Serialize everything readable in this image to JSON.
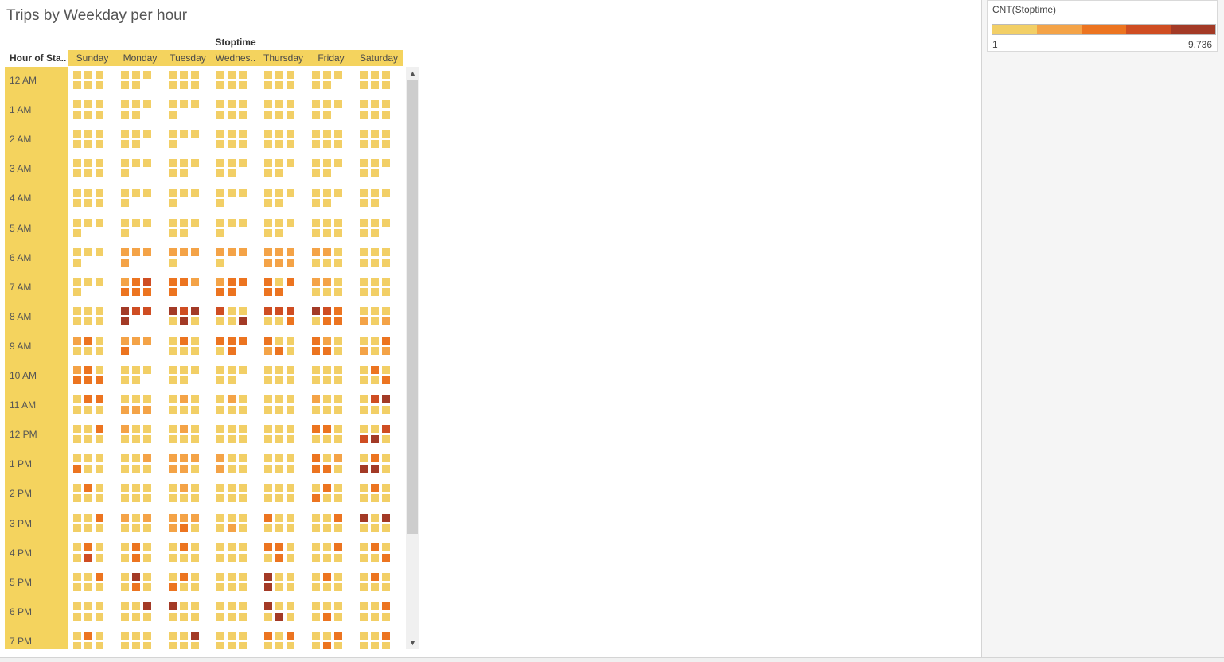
{
  "title": "Trips by Weekday per hour",
  "chart_data": {
    "type": "heatmap",
    "column_group_label": "Stoptime",
    "row_header": "Hour of Sta..",
    "columns": [
      "Sunday",
      "Monday",
      "Tuesday",
      "Wednes..",
      "Thursday",
      "Friday",
      "Saturday"
    ],
    "rows": [
      "12 AM",
      "1 AM",
      "2 AM",
      "3 AM",
      "4 AM",
      "5 AM",
      "6 AM",
      "7 AM",
      "8 AM",
      "9 AM",
      "10 AM",
      "11 AM",
      "12 PM",
      "1 PM",
      "2 PM",
      "3 PM",
      "4 PM",
      "5 PM",
      "6 PM",
      "7 PM"
    ],
    "color_levels": [
      "#f2cf66",
      "#f4a347",
      "#ec7420",
      "#cf4d22",
      "#a33a26"
    ],
    "cells": [
      [
        "000000E",
        "00000",
        "000000",
        "000000E",
        "000000",
        "00000",
        "000000E"
      ],
      [
        "000000",
        "00000",
        "0000",
        "000000",
        "000000",
        "00000",
        "000000"
      ],
      [
        "000000",
        "00000",
        "0000",
        "000000",
        "000000",
        "000000",
        "000000"
      ],
      [
        "000000",
        "0000",
        "00000",
        "00000",
        "00000",
        "00000",
        "00000"
      ],
      [
        "000000",
        "0000",
        "0000",
        "0000",
        "00000",
        "00000",
        "00000"
      ],
      [
        "0000",
        "0000",
        "00000",
        "0000",
        "00000",
        "000000",
        "00000"
      ],
      [
        "0000",
        "1111",
        "1110",
        "1110",
        "111111",
        "110000",
        "000000"
      ],
      [
        "0000",
        "123222",
        "2212",
        "12222",
        "20222",
        "110000",
        "000000"
      ],
      [
        "000000",
        "4334",
        "434040",
        "3000040E",
        "3330020",
        "4320220",
        "000101E"
      ],
      [
        "120000E",
        "1112",
        "020000E",
        "22202",
        "2001200",
        "2102200",
        "002101E"
      ],
      [
        "120222",
        "00000",
        "00000",
        "00000",
        "000000",
        "000000",
        "0200022"
      ],
      [
        "0220000E",
        "000111",
        "010000",
        "010000",
        "000000",
        "100000",
        "0340002"
      ],
      [
        "0020000E",
        "1000000E",
        "010000E",
        "000000E",
        "000000E",
        "2200000E",
        "0033400E"
      ],
      [
        "0002000E",
        "001000E",
        "111110",
        "1001000E",
        "000000E",
        "2012200E",
        "0204400E"
      ],
      [
        "0200000E",
        "000000E",
        "010000E",
        "000000E",
        "000000E",
        "020200E",
        "0200000E"
      ],
      [
        "0020000E",
        "1010000E",
        "111120E",
        "000010E",
        "200000E",
        "002000E",
        "4040000E"
      ],
      [
        "0200300E",
        "020020E",
        "020000E",
        "000000E",
        "220020E",
        "002000E",
        "0200020E"
      ],
      [
        "0020000E",
        "0400200E",
        "020200E",
        "000000E",
        "400400E",
        "0200000E",
        "0200000E"
      ],
      [
        "0000000E",
        "0040000E",
        "4000000E",
        "0000000E",
        "4000400E",
        "0000200E",
        "0020000E"
      ],
      [
        "0200000E",
        "0000000E",
        "0040000E",
        "0000000E",
        "2020000E",
        "0020200E",
        "0020000E"
      ]
    ],
    "legend": {
      "title": "CNT(Stoptime)",
      "min": "1",
      "max": "9,736",
      "steps": [
        "#f2cf66",
        "#f4a347",
        "#ec7420",
        "#cf4d22",
        "#a33a26"
      ]
    }
  }
}
